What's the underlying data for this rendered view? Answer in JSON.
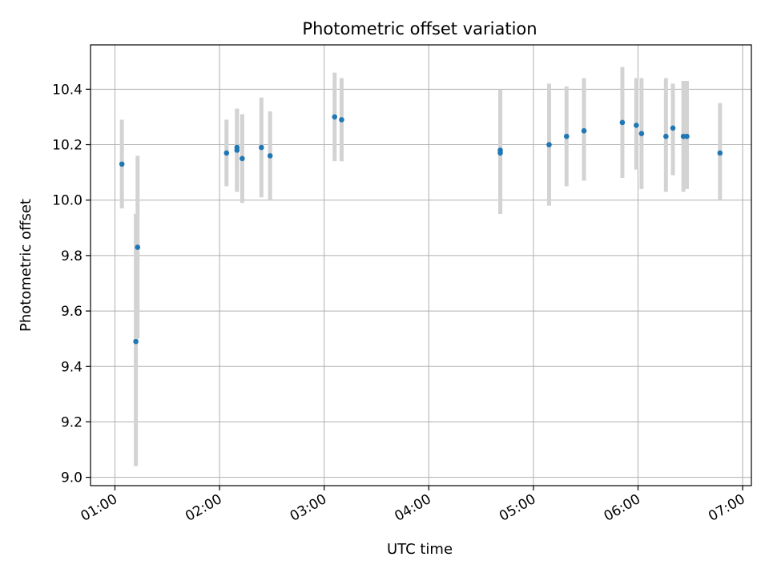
{
  "chart_data": {
    "type": "scatter",
    "title": "Photometric offset variation",
    "xlabel": "UTC time",
    "ylabel": "Photometric offset",
    "x_ticks": [
      "01:00",
      "02:00",
      "03:00",
      "04:00",
      "05:00",
      "06:00",
      "07:00"
    ],
    "y_ticks": [
      "9.0",
      "9.2",
      "9.4",
      "9.6",
      "9.8",
      "10.0",
      "10.2",
      "10.4"
    ],
    "xlim": [
      "00:46",
      "07:05"
    ],
    "ylim": [
      8.97,
      10.56
    ],
    "grid": true,
    "point_color": "#1f77b4",
    "errorbar_color": "#d3d3d3",
    "series": [
      {
        "points": [
          {
            "x": "01:04",
            "y": 10.13,
            "ylo": 9.97,
            "yhi": 10.29
          },
          {
            "x": "01:12",
            "y": 9.49,
            "ylo": 9.04,
            "yhi": 9.95
          },
          {
            "x": "01:13",
            "y": 9.83,
            "ylo": 9.5,
            "yhi": 10.16
          },
          {
            "x": "02:04",
            "y": 10.17,
            "ylo": 10.05,
            "yhi": 10.29
          },
          {
            "x": "02:10",
            "y": 10.18,
            "ylo": 10.03,
            "yhi": 10.33
          },
          {
            "x": "02:10",
            "y": 10.19,
            "ylo": 10.04,
            "yhi": 10.33
          },
          {
            "x": "02:13",
            "y": 10.15,
            "ylo": 9.99,
            "yhi": 10.31
          },
          {
            "x": "02:24",
            "y": 10.19,
            "ylo": 10.01,
            "yhi": 10.37
          },
          {
            "x": "02:29",
            "y": 10.16,
            "ylo": 10.0,
            "yhi": 10.32
          },
          {
            "x": "03:06",
            "y": 10.3,
            "ylo": 10.14,
            "yhi": 10.46
          },
          {
            "x": "03:10",
            "y": 10.29,
            "ylo": 10.14,
            "yhi": 10.44
          },
          {
            "x": "04:41",
            "y": 10.18,
            "ylo": 9.95,
            "yhi": 10.4
          },
          {
            "x": "04:41",
            "y": 10.17,
            "ylo": 9.97,
            "yhi": 10.38
          },
          {
            "x": "05:09",
            "y": 10.2,
            "ylo": 9.98,
            "yhi": 10.42
          },
          {
            "x": "05:19",
            "y": 10.23,
            "ylo": 10.05,
            "yhi": 10.41
          },
          {
            "x": "05:29",
            "y": 10.25,
            "ylo": 10.07,
            "yhi": 10.44
          },
          {
            "x": "05:51",
            "y": 10.28,
            "ylo": 10.08,
            "yhi": 10.48
          },
          {
            "x": "05:59",
            "y": 10.27,
            "ylo": 10.11,
            "yhi": 10.44
          },
          {
            "x": "06:02",
            "y": 10.24,
            "ylo": 10.04,
            "yhi": 10.44
          },
          {
            "x": "06:16",
            "y": 10.23,
            "ylo": 10.03,
            "yhi": 10.44
          },
          {
            "x": "06:20",
            "y": 10.26,
            "ylo": 10.09,
            "yhi": 10.42
          },
          {
            "x": "06:26",
            "y": 10.23,
            "ylo": 10.03,
            "yhi": 10.43
          },
          {
            "x": "06:28",
            "y": 10.23,
            "ylo": 10.04,
            "yhi": 10.43
          },
          {
            "x": "06:47",
            "y": 10.17,
            "ylo": 10.0,
            "yhi": 10.35
          }
        ]
      }
    ]
  }
}
